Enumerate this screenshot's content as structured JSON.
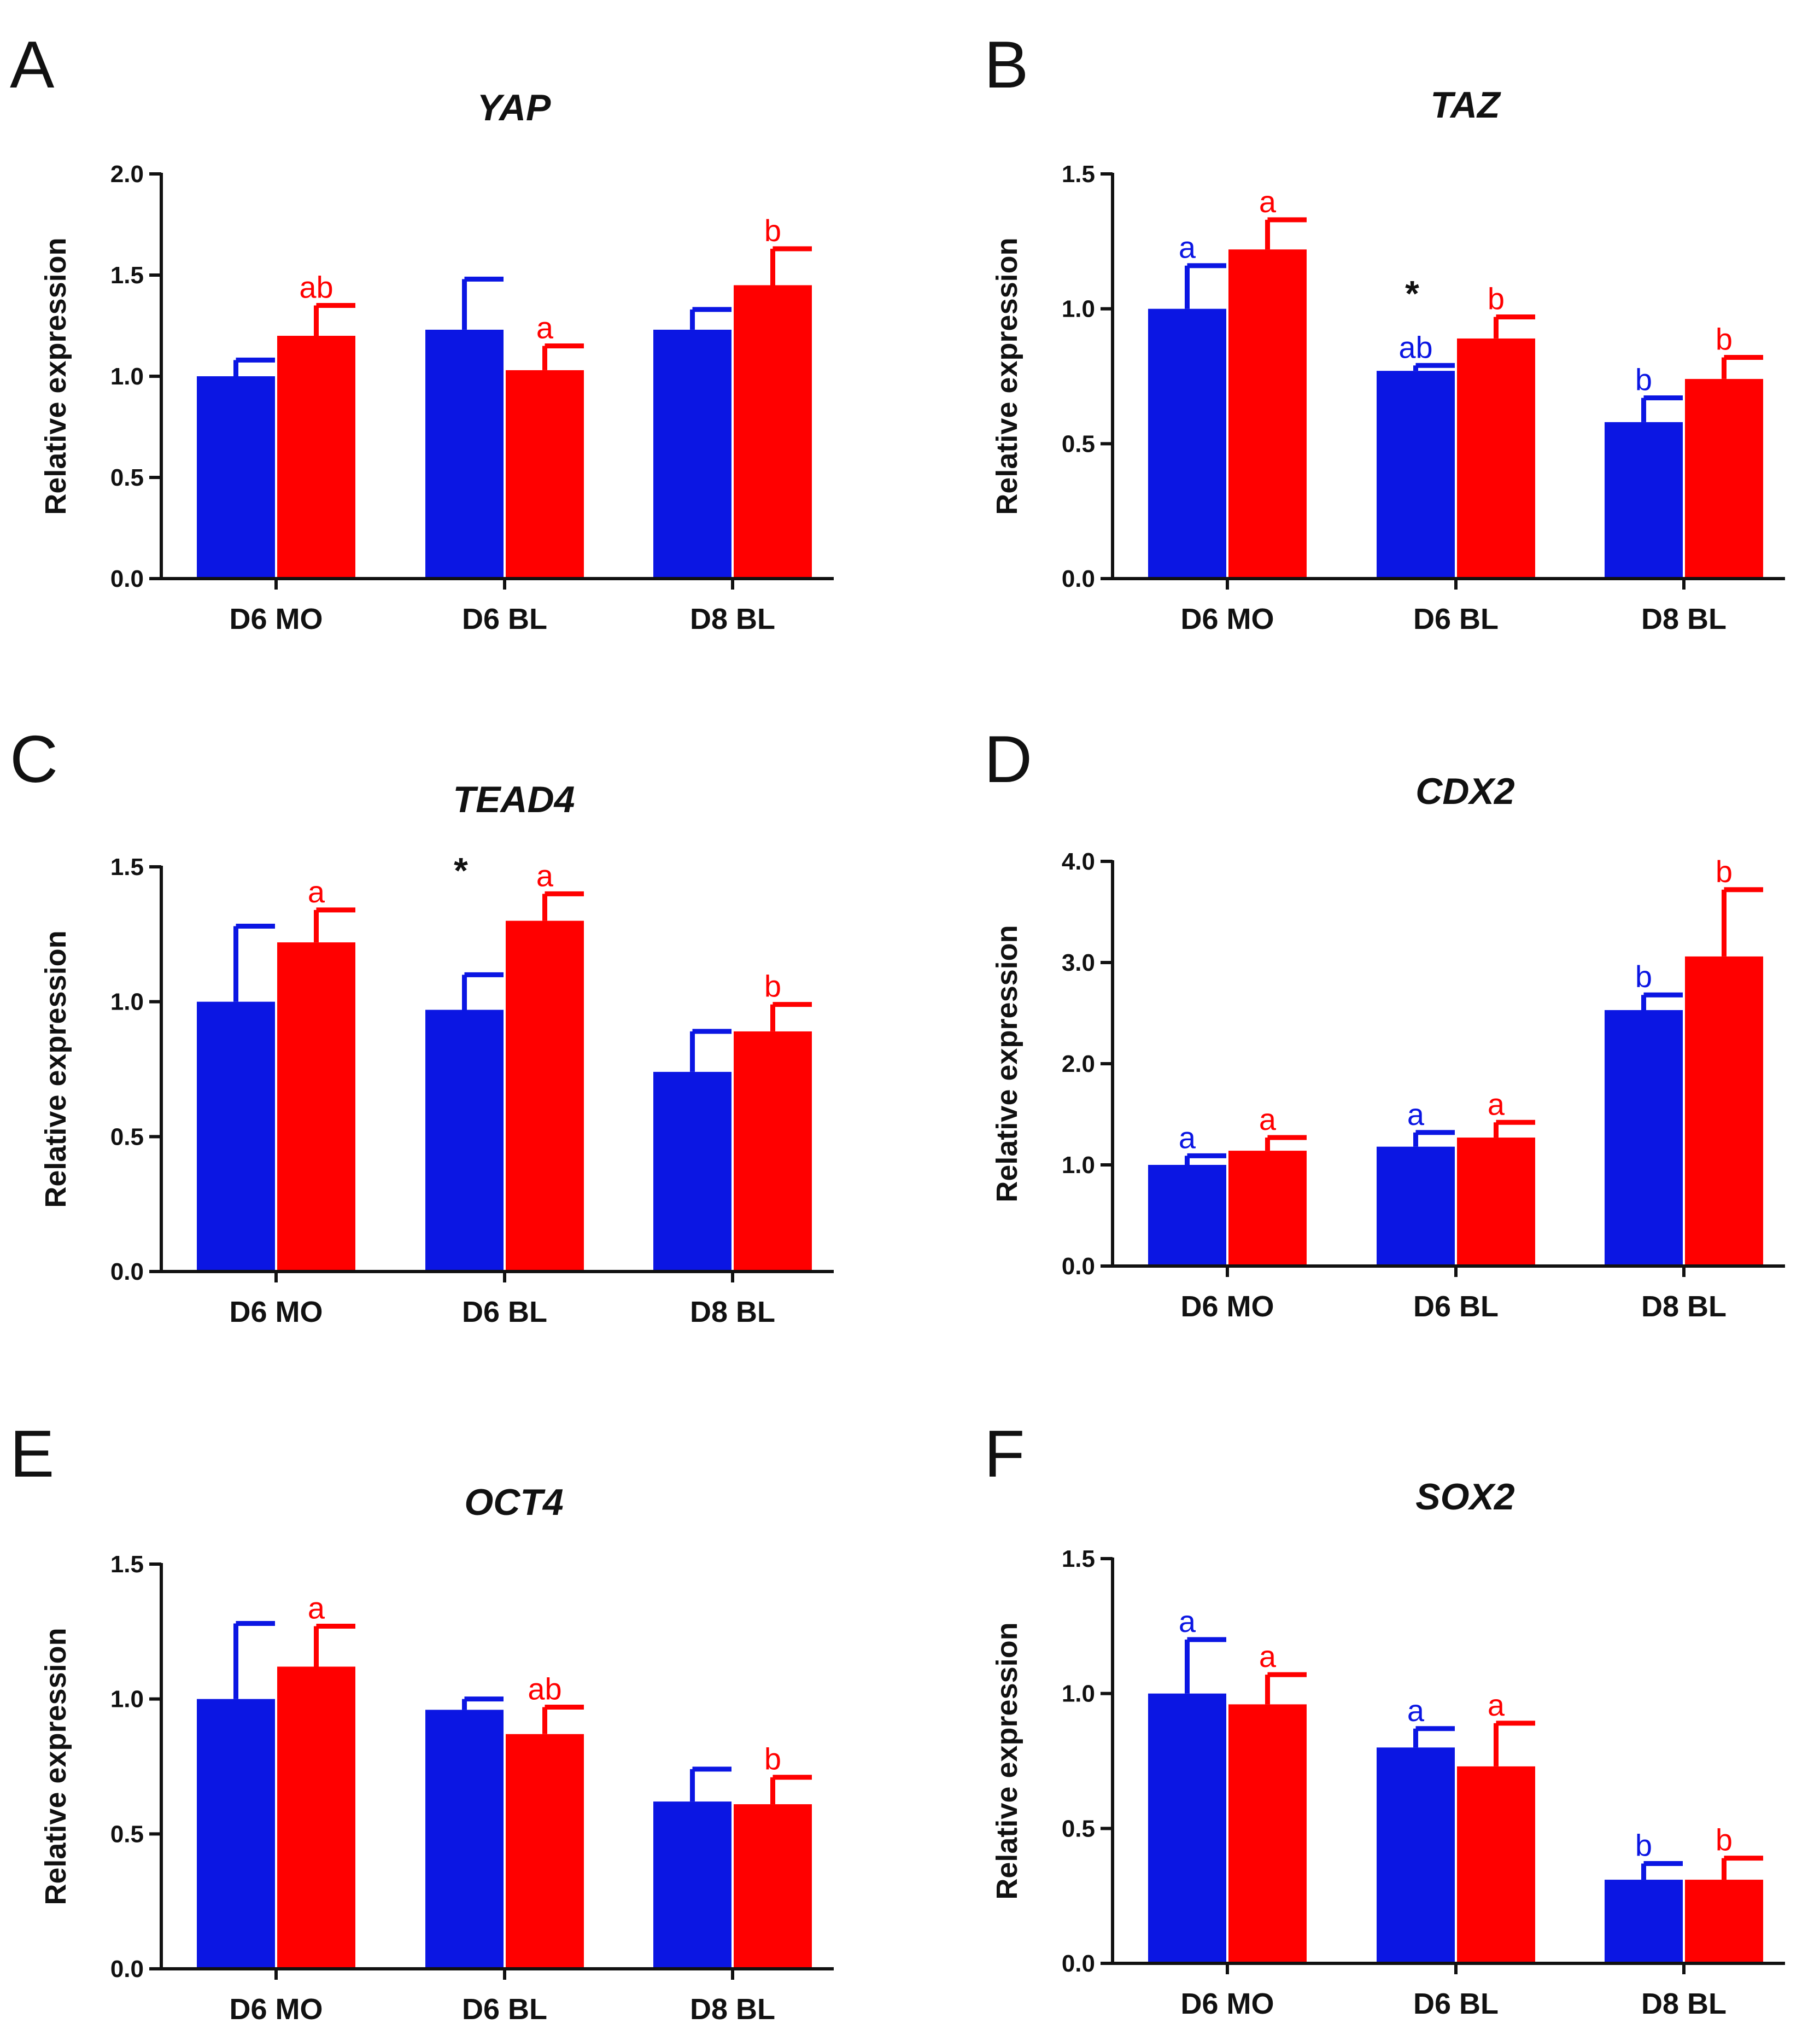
{
  "figure": {
    "colors": {
      "series1": "#0b16e3",
      "series2": "#ff0000",
      "axis": "#111111"
    }
  },
  "chart_data": [
    {
      "panel": "A",
      "title": "YAP",
      "type": "bar",
      "categories": [
        "D6 MO",
        "D6 BL",
        "D8 BL"
      ],
      "ylabel": "Relative expression",
      "xlabel": "",
      "ylim": [
        0,
        2.0
      ],
      "yticks": [
        0,
        0.5,
        1.0,
        1.5,
        2.0
      ],
      "ytick_labels": [
        "0.0",
        "0.5",
        "1.0",
        "1.5",
        "2.0"
      ],
      "series": [
        {
          "name": "series 1 (blue)",
          "color": "#0b16e3",
          "values": [
            1.0,
            1.23,
            1.23
          ],
          "errors": [
            0.08,
            0.25,
            0.1
          ],
          "labels": [
            "",
            "",
            ""
          ]
        },
        {
          "name": "series 2 (red)",
          "color": "#ff0000",
          "values": [
            1.2,
            1.03,
            1.45
          ],
          "errors": [
            0.15,
            0.12,
            0.18
          ],
          "labels": [
            "ab",
            "a",
            "b"
          ]
        }
      ],
      "stars": []
    },
    {
      "panel": "B",
      "title": "TAZ",
      "type": "bar",
      "categories": [
        "D6 MO",
        "D6 BL",
        "D8 BL"
      ],
      "ylabel": "Relative expression",
      "xlabel": "",
      "ylim": [
        0,
        1.5
      ],
      "yticks": [
        0,
        0.5,
        1.0,
        1.5
      ],
      "ytick_labels": [
        "0.0",
        "0.5",
        "1.0",
        "1.5"
      ],
      "series": [
        {
          "name": "series 1 (blue)",
          "color": "#0b16e3",
          "values": [
            1.0,
            0.77,
            0.58
          ],
          "errors": [
            0.16,
            0.02,
            0.09
          ],
          "labels": [
            "a",
            "ab",
            "b"
          ]
        },
        {
          "name": "series 2 (red)",
          "color": "#ff0000",
          "values": [
            1.22,
            0.89,
            0.74
          ],
          "errors": [
            0.11,
            0.08,
            0.08
          ],
          "labels": [
            "a",
            "b",
            "b"
          ]
        }
      ],
      "stars": [
        {
          "category_index": 1,
          "text": "*"
        }
      ]
    },
    {
      "panel": "C",
      "title": "TEAD4",
      "type": "bar",
      "categories": [
        "D6 MO",
        "D6 BL",
        "D8 BL"
      ],
      "ylabel": "Relative expression",
      "xlabel": "",
      "ylim": [
        0,
        1.5
      ],
      "yticks": [
        0,
        0.5,
        1.0,
        1.5
      ],
      "ytick_labels": [
        "0.0",
        "0.5",
        "1.0",
        "1.5"
      ],
      "series": [
        {
          "name": "series 1 (blue)",
          "color": "#0b16e3",
          "values": [
            1.0,
            0.97,
            0.74
          ],
          "errors": [
            0.28,
            0.13,
            0.15
          ],
          "labels": [
            "",
            "",
            ""
          ]
        },
        {
          "name": "series 2 (red)",
          "color": "#ff0000",
          "values": [
            1.22,
            1.3,
            0.89
          ],
          "errors": [
            0.12,
            0.1,
            0.1
          ],
          "labels": [
            "a",
            "a",
            "b"
          ]
        }
      ],
      "stars": [
        {
          "category_index": 1,
          "text": "*"
        }
      ]
    },
    {
      "panel": "D",
      "title": "CDX2",
      "type": "bar",
      "categories": [
        "D6 MO",
        "D6 BL",
        "D8 BL"
      ],
      "ylabel": "Relative expression",
      "xlabel": "",
      "ylim": [
        0,
        4.0
      ],
      "yticks": [
        0,
        1.0,
        2.0,
        3.0,
        4.0
      ],
      "ytick_labels": [
        "0.0",
        "1.0",
        "2.0",
        "3.0",
        "4.0"
      ],
      "series": [
        {
          "name": "series 1 (blue)",
          "color": "#0b16e3",
          "values": [
            1.0,
            1.18,
            2.53
          ],
          "errors": [
            0.09,
            0.14,
            0.15
          ],
          "labels": [
            "a",
            "a",
            "b"
          ]
        },
        {
          "name": "series 2 (red)",
          "color": "#ff0000",
          "values": [
            1.14,
            1.27,
            3.06
          ],
          "errors": [
            0.13,
            0.15,
            0.66
          ],
          "labels": [
            "a",
            "a",
            "b"
          ]
        }
      ],
      "stars": []
    },
    {
      "panel": "E",
      "title": "OCT4",
      "type": "bar",
      "categories": [
        "D6 MO",
        "D6 BL",
        "D8 BL"
      ],
      "ylabel": "Relative expression",
      "xlabel": "",
      "ylim": [
        0,
        1.5
      ],
      "yticks": [
        0,
        0.5,
        1.0,
        1.5
      ],
      "ytick_labels": [
        "0.0",
        "0.5",
        "1.0",
        "1.5"
      ],
      "series": [
        {
          "name": "series 1 (blue)",
          "color": "#0b16e3",
          "values": [
            1.0,
            0.96,
            0.62
          ],
          "errors": [
            0.28,
            0.04,
            0.12
          ],
          "labels": [
            "",
            "",
            ""
          ]
        },
        {
          "name": "series 2 (red)",
          "color": "#ff0000",
          "values": [
            1.12,
            0.87,
            0.61
          ],
          "errors": [
            0.15,
            0.1,
            0.1
          ],
          "labels": [
            "a",
            "ab",
            "b"
          ]
        }
      ],
      "stars": []
    },
    {
      "panel": "F",
      "title": "SOX2",
      "type": "bar",
      "categories": [
        "D6 MO",
        "D6 BL",
        "D8 BL"
      ],
      "ylabel": "Relative expression",
      "xlabel": "",
      "ylim": [
        0,
        1.5
      ],
      "yticks": [
        0,
        0.5,
        1.0,
        1.5
      ],
      "ytick_labels": [
        "0.0",
        "0.5",
        "1.0",
        "1.5"
      ],
      "series": [
        {
          "name": "series 1 (blue)",
          "color": "#0b16e3",
          "values": [
            1.0,
            0.8,
            0.31
          ],
          "errors": [
            0.2,
            0.07,
            0.06
          ],
          "labels": [
            "a",
            "a",
            "b"
          ]
        },
        {
          "name": "series 2 (red)",
          "color": "#ff0000",
          "values": [
            0.96,
            0.73,
            0.31
          ],
          "errors": [
            0.11,
            0.16,
            0.08
          ],
          "labels": [
            "a",
            "a",
            "b"
          ]
        }
      ],
      "stars": []
    }
  ]
}
